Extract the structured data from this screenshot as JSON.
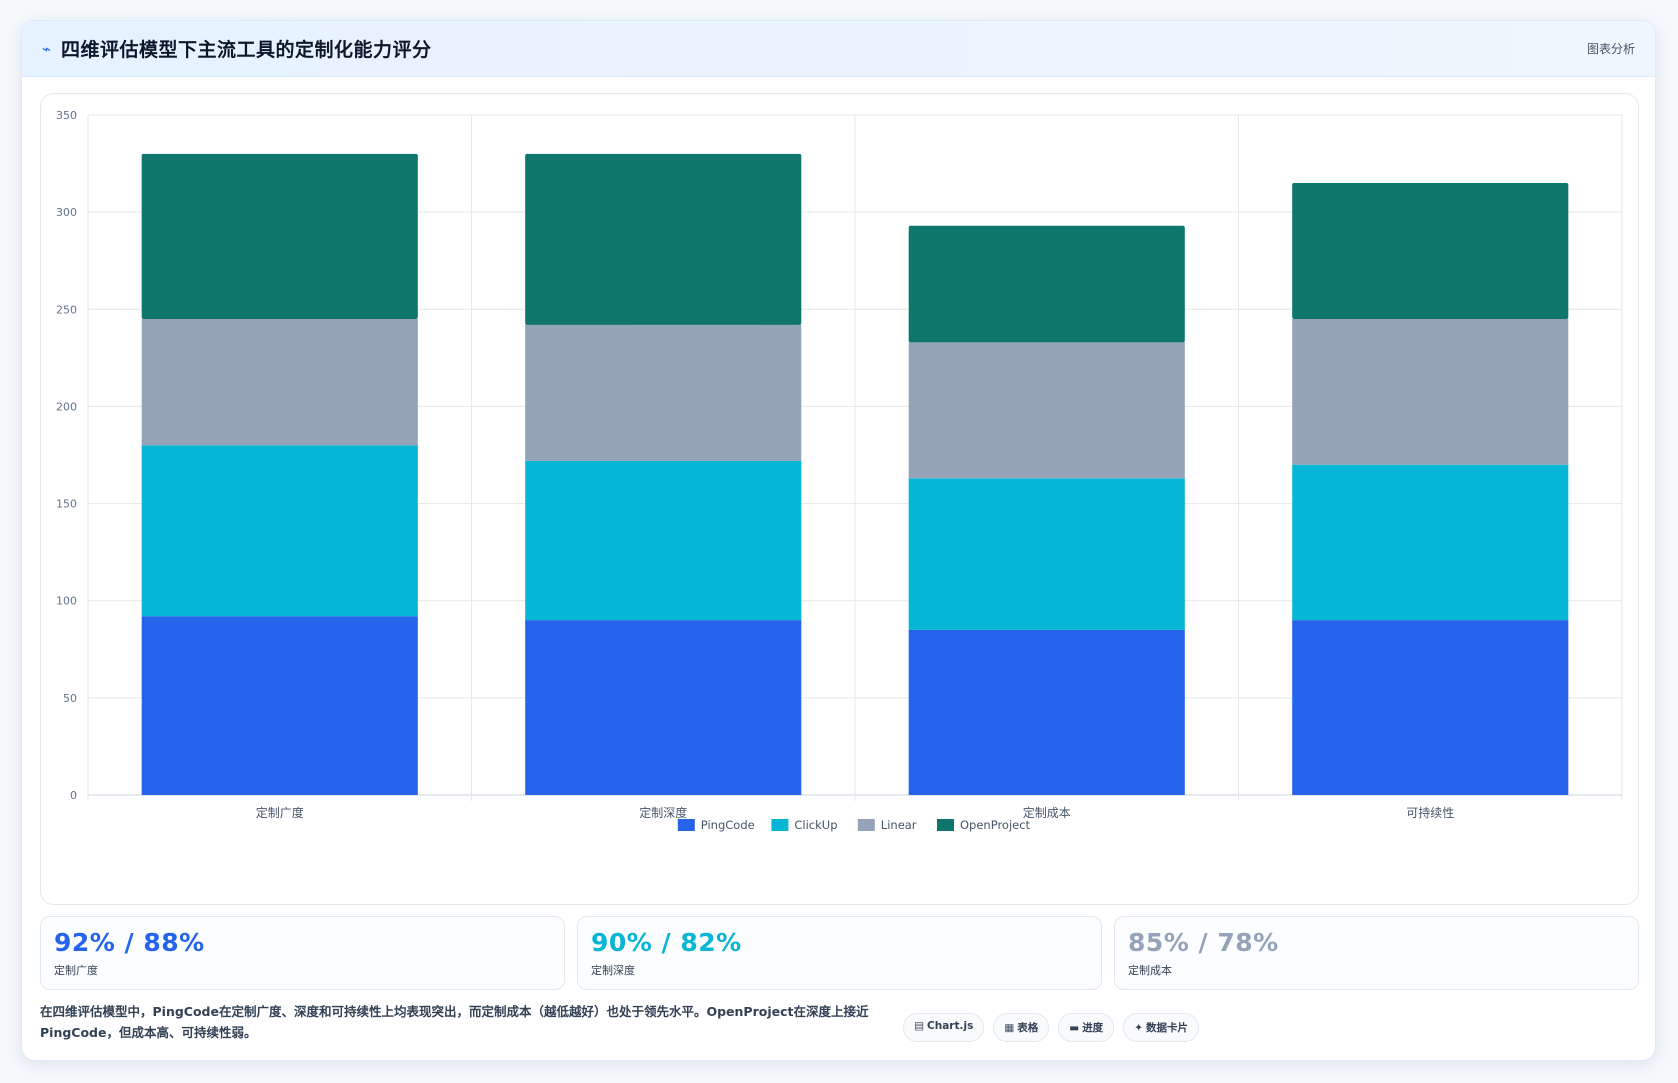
{
  "header": {
    "icon": "chart-line-icon",
    "title": "四维评估模型下主流工具的定制化能力评分",
    "tag": "图表分析"
  },
  "chart_data": {
    "type": "bar",
    "stacked": true,
    "categories": [
      "定制广度",
      "定制深度",
      "定制成本",
      "可持续性"
    ],
    "series": [
      {
        "name": "PingCode",
        "color": "#2563eb",
        "values": [
          92,
          90,
          85,
          90
        ]
      },
      {
        "name": "ClickUp",
        "color": "#06b6d4",
        "values": [
          88,
          82,
          78,
          80
        ]
      },
      {
        "name": "Linear",
        "color": "#94a3b8",
        "values": [
          65,
          70,
          70,
          75
        ]
      },
      {
        "name": "OpenProject",
        "color": "#0f766e",
        "values": [
          85,
          88,
          60,
          70
        ]
      }
    ],
    "ylim": [
      0,
      350
    ],
    "yticks": [
      0,
      50,
      100,
      150,
      200,
      250,
      300,
      350
    ],
    "grid": true,
    "legend": "bottom"
  },
  "stats": [
    {
      "value": "92% / 88%",
      "label": "定制广度",
      "color": "#2563eb"
    },
    {
      "value": "90% / 82%",
      "label": "定制深度",
      "color": "#06b6d4"
    },
    {
      "value": "85% / 78%",
      "label": "定制成本",
      "color": "#94a3b8"
    }
  ],
  "footer": {
    "text": "在四维评估模型中，PingCode在定制广度、深度和可持续性上均表现突出，而定制成本（越低越好）也处于领先水平。OpenProject在深度上接近PingCode，但成本高、可持续性弱。",
    "tags": [
      {
        "icon": "▤",
        "label": "Chart.js"
      },
      {
        "icon": "▦",
        "label": "表格"
      },
      {
        "icon": "▬",
        "label": "进度"
      },
      {
        "icon": "✦",
        "label": "数据卡片"
      }
    ]
  }
}
